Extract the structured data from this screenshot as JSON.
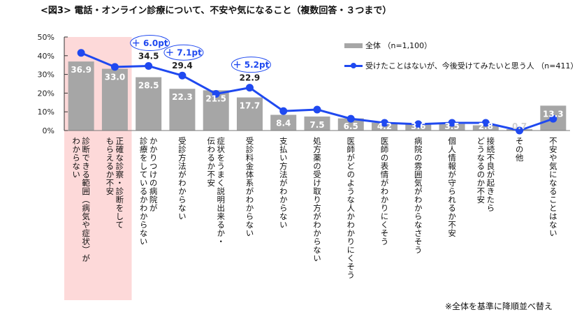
{
  "title": "<図3> 電話・オンライン診療について、不安や気になること（複数回答・３つまで）",
  "footnote": "※全体を基準に降順並べ替え",
  "colors": {
    "bar": "#a6a6a6",
    "line": "#1f49f0",
    "highlight": "#fdd9d9",
    "axis": "#333333"
  },
  "chart_data": {
    "type": "bar",
    "title": "<図3> 電話・オンライン診療について、不安や気になること（複数回答・３つまで）",
    "xlabel": "",
    "ylabel": "",
    "ylim": [
      0,
      50
    ],
    "yticks": [
      0,
      10,
      20,
      30,
      40,
      50
    ],
    "ytick_labels": [
      "0%",
      "10%",
      "20%",
      "30%",
      "40%",
      "50%"
    ],
    "grid": false,
    "legend_position": "top-right",
    "highlighted_categories": [
      0,
      1
    ],
    "categories": [
      "診断できる範囲（病気や症状）が\nわからない",
      "正確な診察・診断をして\nもらえるか不安",
      "かかりつけの病院が\n診療をしているかわからない",
      "受診方法がわからない",
      "症状をうまく説明出来るか・\n伝わるか不安",
      "受診料金体系がわからない",
      "支払い方法がわからない",
      "処方薬の受け取り方がわからない",
      "医師がどのような人かわかりにくそう",
      "医師の表情がわかりにくそう",
      "病院の雰囲気がわからなさそう",
      "個人情報が守られるか不安",
      "接続不良が起きたら\nどうなるのか不安",
      "その他",
      "不安や気になることはない"
    ],
    "series": [
      {
        "name": "全体（n=1,100）",
        "type": "bar",
        "values": [
          36.9,
          33.0,
          28.5,
          22.3,
          21.5,
          17.7,
          8.4,
          7.5,
          6.5,
          4.2,
          3.6,
          3.5,
          2.8,
          0.7,
          13.3
        ],
        "labels": [
          "36.9",
          "33.0",
          "28.5",
          "22.3",
          "21.5",
          "17.7",
          "8.4",
          "7.5",
          "6.5",
          "4.2",
          "3.6",
          "3.5",
          "2.8",
          "0.7",
          "13.3"
        ]
      },
      {
        "name": "受けたことはないが、今後受けてみたいと思う人 （n=411）",
        "type": "line",
        "values": [
          41.5,
          34.0,
          34.5,
          29.4,
          19.6,
          22.9,
          10.4,
          11.2,
          6.3,
          4.1,
          3.4,
          4.1,
          4.1,
          0.0,
          6.3
        ],
        "labels": [
          null,
          null,
          "34.5",
          "29.4",
          null,
          "22.9",
          null,
          null,
          null,
          null,
          null,
          null,
          null,
          null,
          null
        ]
      }
    ],
    "annotations": [
      {
        "category_index": 2,
        "text": "＋ 6.0pt"
      },
      {
        "category_index": 3,
        "text": "＋ 7.1pt"
      },
      {
        "category_index": 5,
        "text": "＋ 5.2pt"
      }
    ]
  },
  "legend": {
    "bar_label": "全体 （n=1,100）",
    "line_label": "受けたことはないが、今後受けてみたいと思う人 （n=411）"
  }
}
